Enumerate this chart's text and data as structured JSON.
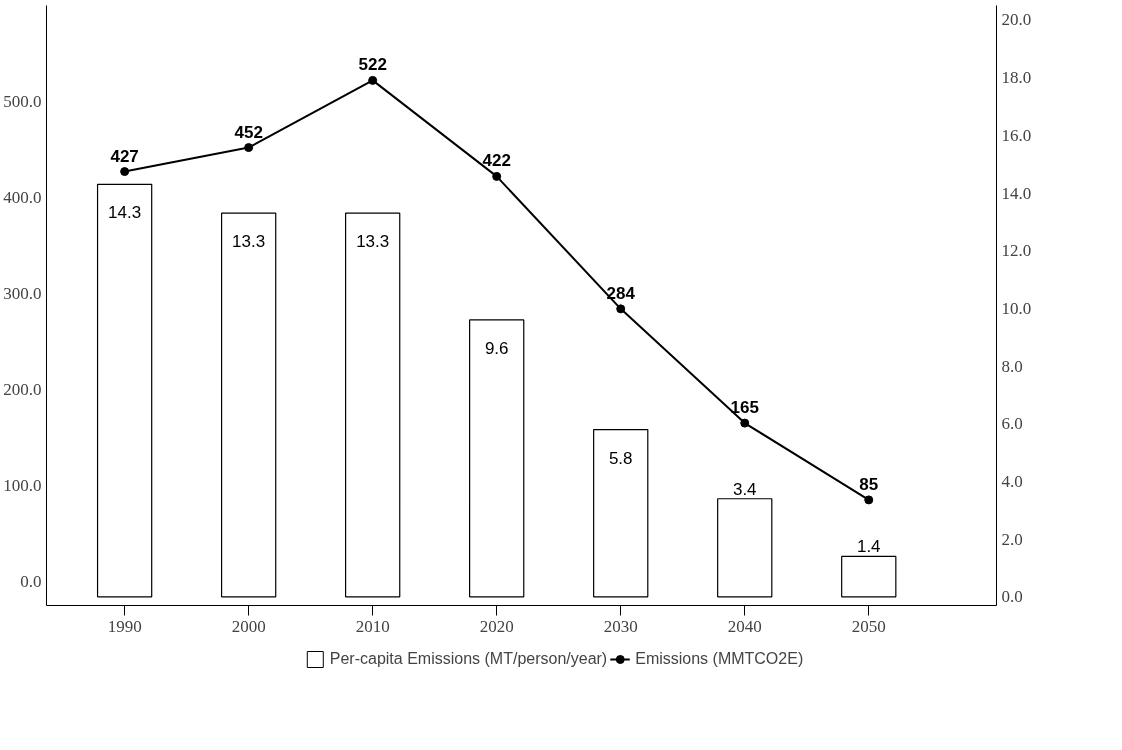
{
  "chart_data": {
    "type": "bar",
    "x": [
      1990,
      2000,
      2010,
      2020,
      2030,
      2040,
      2050
    ],
    "xlim": [
      1983.7,
      2060.3
    ],
    "xticks": [
      1990,
      2000,
      2010,
      2020,
      2030,
      2040,
      2050
    ],
    "ylim": [
      -25,
      600
    ],
    "yticks": [
      {
        "value": 0,
        "label": "0.0"
      },
      {
        "value": 100,
        "label": "100.0"
      },
      {
        "value": 200,
        "label": "200.0"
      },
      {
        "value": 300,
        "label": "300.0"
      },
      {
        "value": 400,
        "label": "400.0"
      },
      {
        "value": 500,
        "label": "500.0"
      }
    ],
    "y2lim": [
      -0.3,
      20.5
    ],
    "y2ticks": [
      {
        "value": 0,
        "label": "0.0"
      },
      {
        "value": 2,
        "label": "2.0"
      },
      {
        "value": 4,
        "label": "4.0"
      },
      {
        "value": 6,
        "label": "6.0"
      },
      {
        "value": 8,
        "label": "8.0"
      },
      {
        "value": 10,
        "label": "10.0"
      },
      {
        "value": 12,
        "label": "12.0"
      },
      {
        "value": 14,
        "label": "14.0"
      },
      {
        "value": 16,
        "label": "16.0"
      },
      {
        "value": 18,
        "label": "18.0"
      },
      {
        "value": 20,
        "label": "20.0"
      }
    ],
    "series": [
      {
        "name": "Per-capita Emissions (MT/person/year)",
        "axis": "y2",
        "color": "#ffffff",
        "values": [
          14.3,
          13.3,
          13.3,
          9.6,
          5.8,
          3.4,
          1.4
        ]
      },
      {
        "name": "Emissions (MMTCO2E)",
        "type": "line",
        "axis": "y",
        "color": "#000000",
        "values": [
          427,
          452,
          522,
          422,
          284,
          165,
          85
        ]
      }
    ],
    "data_labels": true,
    "legend": "bottom",
    "grid": false,
    "marker": "circle",
    "line_style": "solid"
  }
}
